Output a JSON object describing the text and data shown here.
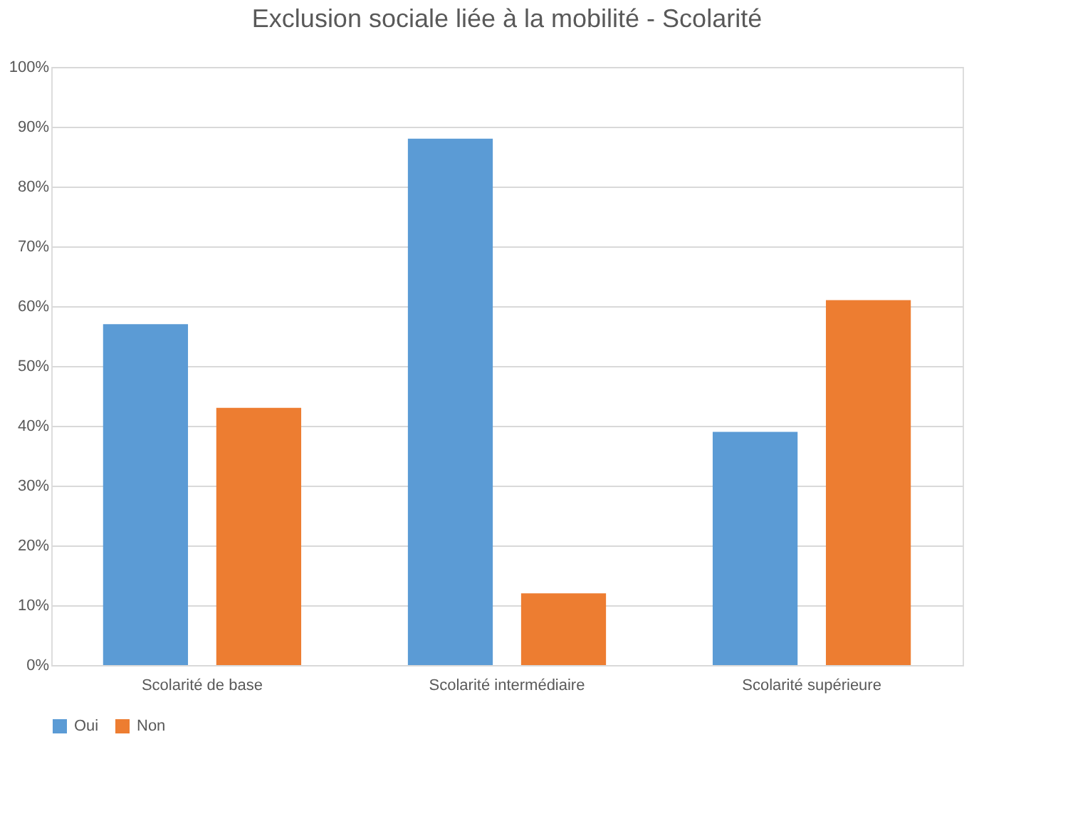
{
  "chart_data": {
    "type": "bar",
    "title": "Exclusion sociale liée à la mobilité - Scolarité",
    "categories": [
      "Scolarité de base",
      "Scolarité intermédiaire",
      "Scolarité supérieure"
    ],
    "series": [
      {
        "name": "Oui",
        "color": "#5b9bd5",
        "values": [
          57,
          88,
          39
        ]
      },
      {
        "name": "Non",
        "color": "#ed7d31",
        "values": [
          43,
          12,
          61
        ]
      }
    ],
    "ylim": [
      0,
      100
    ],
    "yticks": [
      {
        "value": 0,
        "label": "0%"
      },
      {
        "value": 10,
        "label": "10%"
      },
      {
        "value": 20,
        "label": "20%"
      },
      {
        "value": 30,
        "label": "30%"
      },
      {
        "value": 40,
        "label": "40%"
      },
      {
        "value": 50,
        "label": "50%"
      },
      {
        "value": 60,
        "label": "60%"
      },
      {
        "value": 70,
        "label": "70%"
      },
      {
        "value": 80,
        "label": "80%"
      },
      {
        "value": 90,
        "label": "90%"
      },
      {
        "value": 100,
        "label": "100%"
      }
    ],
    "grid": "y",
    "legend": "bottom"
  }
}
